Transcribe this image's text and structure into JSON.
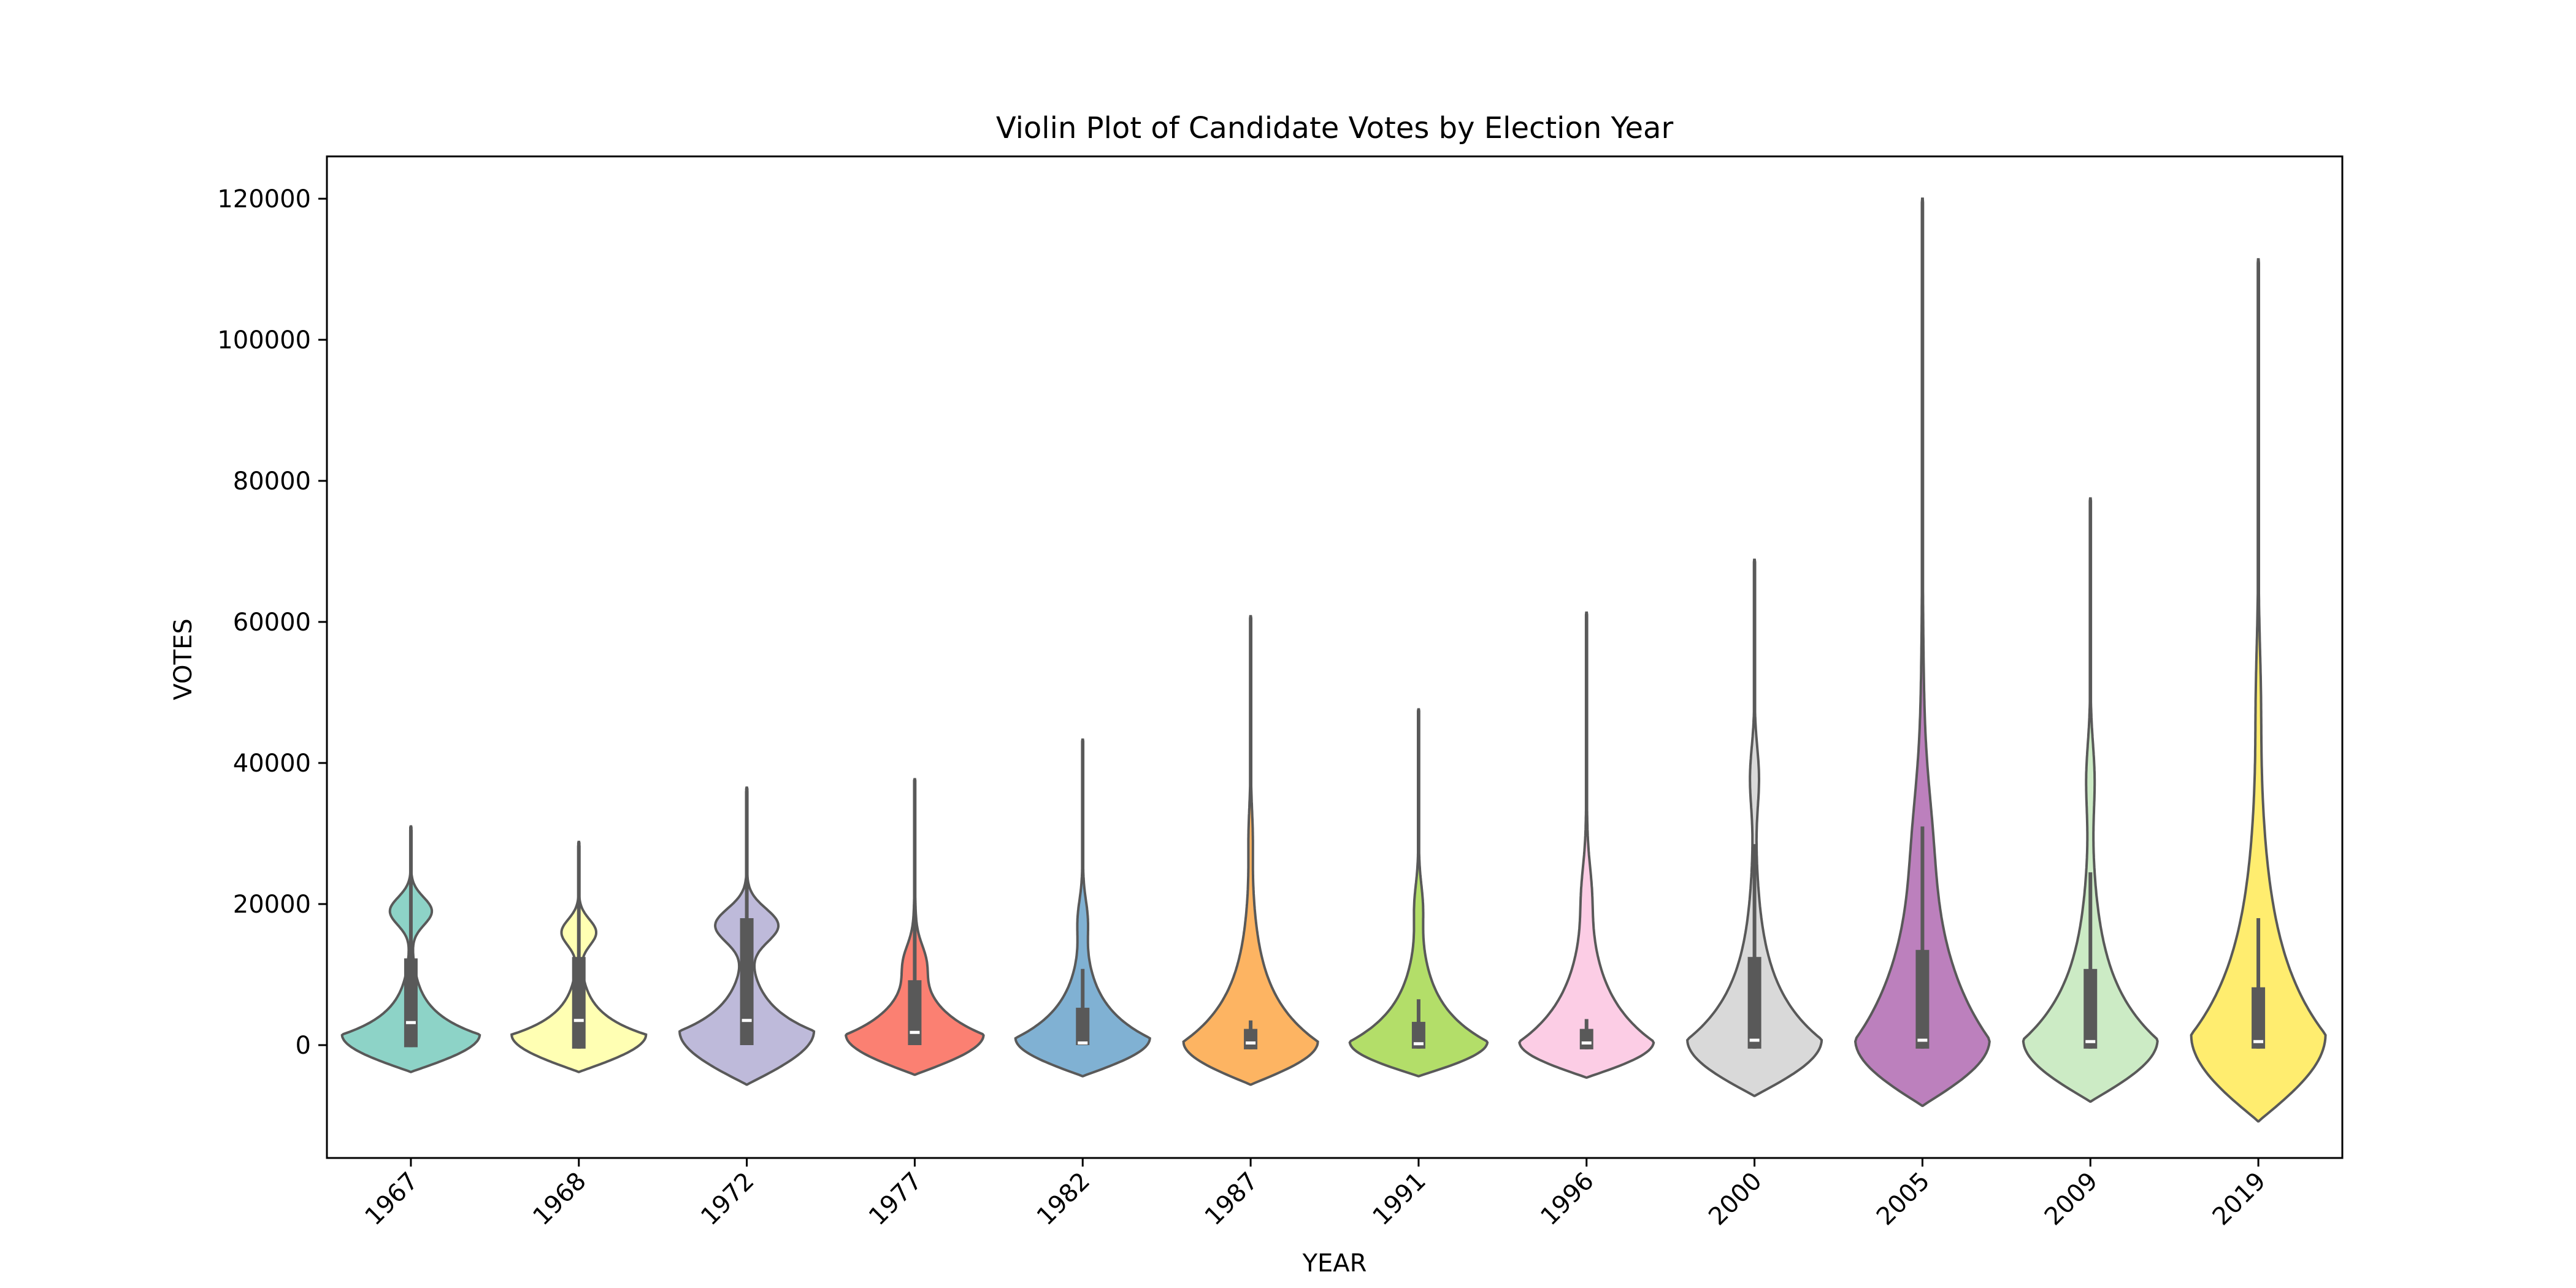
{
  "chart_data": {
    "type": "violin",
    "title": "Violin Plot of Candidate Votes by Election Year",
    "xlabel": "YEAR",
    "ylabel": "VOTES",
    "ylim": [
      -16000,
      126000
    ],
    "yticks": [
      0,
      20000,
      40000,
      60000,
      80000,
      100000,
      120000
    ],
    "grid": false,
    "categories": [
      "1967",
      "1968",
      "1972",
      "1977",
      "1982",
      "1987",
      "1991",
      "1996",
      "2000",
      "2005",
      "2009",
      "2019"
    ],
    "series": [
      {
        "category": "1967",
        "color": "#8dd3c7",
        "min": -3800,
        "max": 31000,
        "q1": -300,
        "median": 3200,
        "q3": 12300,
        "whisker_low": -300,
        "whisker_high": 30500,
        "upper_bulge_at": 19000,
        "upper_bulge": 0.3,
        "peak": 1500,
        "max_half_width": 0.41
      },
      {
        "category": "1968",
        "color": "#ffffb3",
        "min": -3800,
        "max": 28800,
        "q1": -500,
        "median": 3500,
        "q3": 12500,
        "whisker_low": -500,
        "whisker_high": 28300,
        "upper_bulge_at": 16000,
        "upper_bulge": 0.25,
        "peak": 1500,
        "max_half_width": 0.4
      },
      {
        "category": "1972",
        "color": "#bebada",
        "min": -5600,
        "max": 36500,
        "q1": 0,
        "median": 3500,
        "q3": 18000,
        "whisker_low": 0,
        "whisker_high": 36000,
        "upper_bulge_at": 17000,
        "upper_bulge": 0.45,
        "peak": 2000,
        "max_half_width": 0.4
      },
      {
        "category": "1977",
        "color": "#fb8072",
        "min": -4200,
        "max": 37700,
        "q1": 0,
        "median": 1800,
        "q3": 9200,
        "whisker_low": 0,
        "whisker_high": 20000,
        "upper_bulge_at": 12000,
        "upper_bulge": 0.1,
        "peak": 1500,
        "max_half_width": 0.41
      },
      {
        "category": "1982",
        "color": "#80b1d3",
        "min": -4400,
        "max": 43300,
        "q1": 0,
        "median": 300,
        "q3": 5300,
        "whisker_low": 0,
        "whisker_high": 10800,
        "upper_bulge_at": 18000,
        "upper_bulge": 0.05,
        "peak": 1000,
        "max_half_width": 0.4
      },
      {
        "category": "1987",
        "color": "#fdb462",
        "min": -5600,
        "max": 60800,
        "q1": -600,
        "median": 300,
        "q3": 2300,
        "whisker_low": -600,
        "whisker_high": 3500,
        "upper_bulge_at": 30000,
        "upper_bulge": 0.02,
        "peak": 500,
        "max_half_width": 0.4
      },
      {
        "category": "1991",
        "color": "#b3de69",
        "min": -4400,
        "max": 47600,
        "q1": -500,
        "median": 200,
        "q3": 3300,
        "whisker_low": -500,
        "whisker_high": 6500,
        "upper_bulge_at": 20000,
        "upper_bulge": 0.04,
        "peak": 500,
        "max_half_width": 0.41
      },
      {
        "category": "1996",
        "color": "#fccde5",
        "min": -4600,
        "max": 61300,
        "q1": -600,
        "median": 300,
        "q3": 2300,
        "whisker_low": -600,
        "whisker_high": 3700,
        "upper_bulge_at": 22000,
        "upper_bulge": 0.04,
        "peak": 500,
        "max_half_width": 0.4
      },
      {
        "category": "2000",
        "color": "#d9d9d9",
        "min": -7200,
        "max": 68800,
        "q1": -500,
        "median": 700,
        "q3": 12500,
        "whisker_low": -500,
        "whisker_high": 28500,
        "upper_bulge_at": 38000,
        "upper_bulge": 0.06,
        "peak": 800,
        "max_half_width": 0.4
      },
      {
        "category": "2005",
        "color": "#bc80bd",
        "min": -8600,
        "max": 120000,
        "q1": -500,
        "median": 700,
        "q3": 13500,
        "whisker_low": -500,
        "whisker_high": 31000,
        "upper_bulge_at": 30000,
        "upper_bulge": 0.05,
        "peak": 800,
        "max_half_width": 0.4
      },
      {
        "category": "2009",
        "color": "#ccebc5",
        "min": -8000,
        "max": 77500,
        "q1": -500,
        "median": 500,
        "q3": 10800,
        "whisker_low": -500,
        "whisker_high": 24500,
        "upper_bulge_at": 38000,
        "upper_bulge": 0.05,
        "peak": 800,
        "max_half_width": 0.4
      },
      {
        "category": "2019",
        "color": "#ffed6f",
        "min": -10800,
        "max": 111400,
        "q1": -500,
        "median": 500,
        "q3": 8200,
        "whisker_low": -500,
        "whisker_high": 18000,
        "upper_bulge_at": 50000,
        "upper_bulge": 0.02,
        "peak": 1500,
        "max_half_width": 0.4
      }
    ]
  }
}
